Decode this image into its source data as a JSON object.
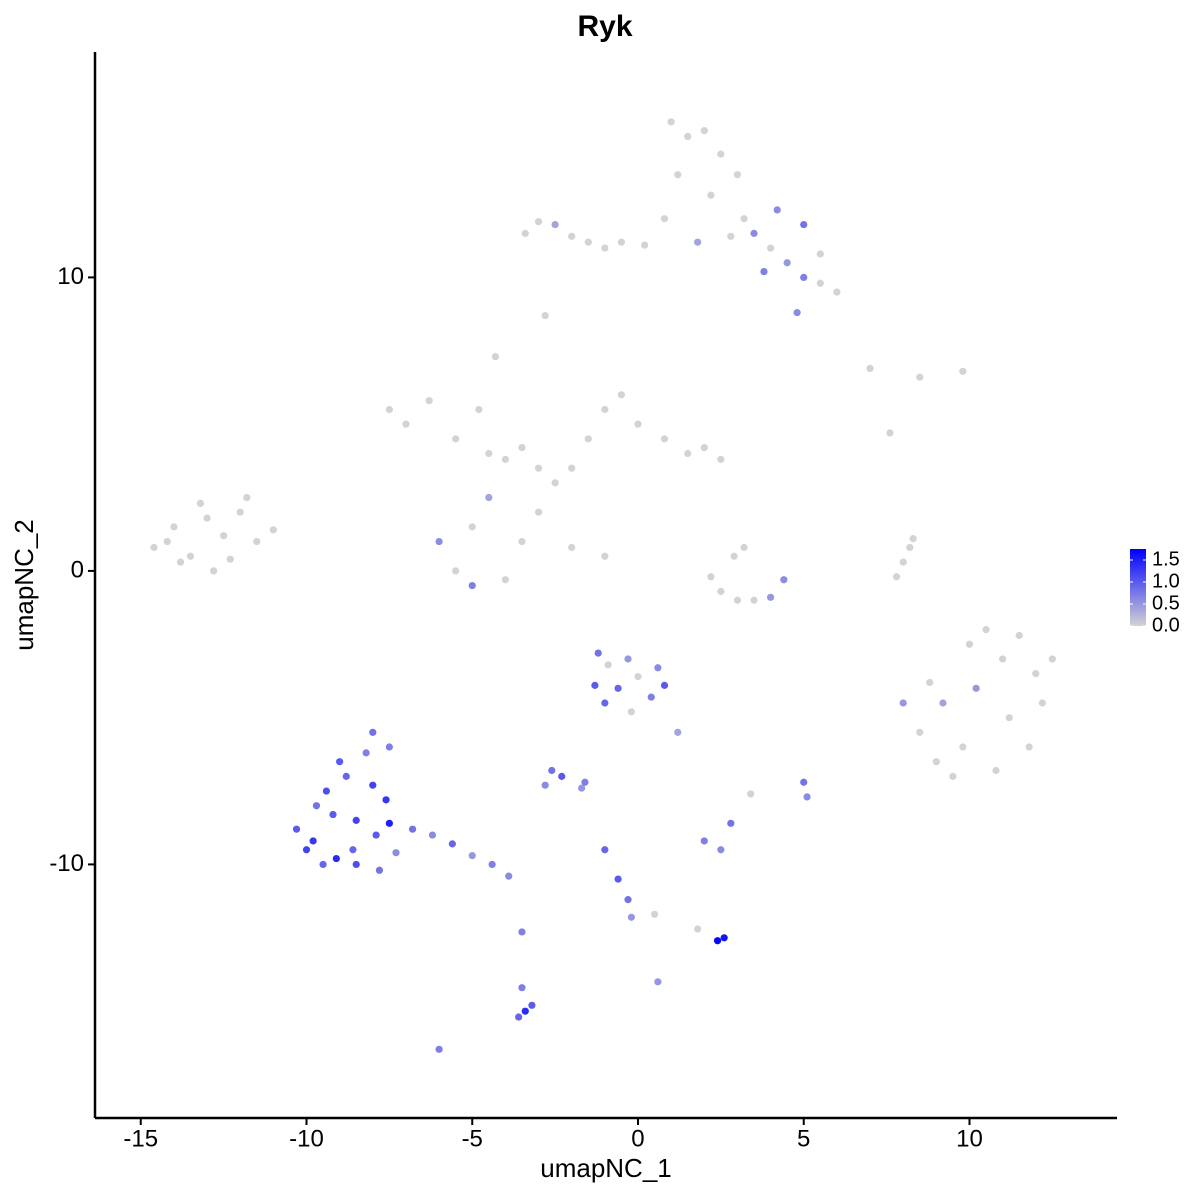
{
  "chart_data": {
    "type": "scatter",
    "title": "Ryk",
    "x_label": "umapNC_1",
    "y_label": "umapNC_2",
    "xlim": [
      -16.38,
      14.45
    ],
    "ylim": [
      -18.64,
      17.68
    ],
    "xticks": [
      -15,
      -10,
      -5,
      0,
      5,
      10
    ],
    "yticks": [
      -10,
      0,
      10
    ],
    "grid": false,
    "colors": {
      "low": "#d3d3d3",
      "high": "#0000ff"
    },
    "colorbar": {
      "lim": [
        0,
        1.75
      ],
      "ticks": [
        {
          "value": 0,
          "label": "0.0"
        },
        0.5,
        {
          "value": 1,
          "label": "1.0"
        },
        1.5
      ]
    },
    "x": [
      -14.6,
      -14.0,
      -13.5,
      -13.0,
      -12.5,
      -12.0,
      -11.5,
      -11.0,
      -13.8,
      -13.2,
      -12.3,
      -11.8,
      -12.8,
      -14.2,
      -7.5,
      -7.0,
      -6.3,
      -5.5,
      -4.5,
      -4.0,
      -3.5,
      -3.0,
      -2.5,
      -2.0,
      -1.5,
      -1.0,
      -0.5,
      0.0,
      0.8,
      1.5,
      2.0,
      2.5,
      -4.3,
      -4.8,
      -3.0,
      -2.0,
      -6.0,
      -5.5,
      -5.0,
      -4.0,
      -3.5,
      -1.0,
      -4.5,
      -5.0,
      1.0,
      1.5,
      2.0,
      2.5,
      3.0,
      1.2,
      2.2,
      3.2,
      3.5,
      4.0,
      4.5,
      5.0,
      5.5,
      6.0,
      4.2,
      5.0,
      5.5,
      3.8,
      0.8,
      1.8,
      2.8,
      4.8,
      -3.4,
      -3.0,
      -2.5,
      -2.0,
      -1.5,
      -1.0,
      -0.5,
      0.2,
      -2.8,
      7.0,
      8.5,
      9.8,
      7.6,
      2.2,
      2.5,
      3.0,
      3.5,
      4.0,
      4.4,
      3.2,
      2.9,
      7.8,
      8.0,
      8.2,
      8.3,
      8.0,
      8.5,
      9.0,
      9.5,
      10.0,
      10.5,
      11.0,
      11.5,
      12.0,
      12.5,
      9.2,
      10.2,
      11.2,
      12.2,
      9.8,
      10.8,
      11.8,
      8.8,
      -10.3,
      -10.0,
      -9.7,
      -9.4,
      -9.1,
      -8.8,
      -8.5,
      -8.2,
      -7.9,
      -7.6,
      -7.3,
      -9.5,
      -9.0,
      -8.5,
      -8.0,
      -7.5,
      -9.8,
      -9.2,
      -8.6,
      -8.0,
      -7.5,
      -6.8,
      -6.2,
      -5.6,
      -5.0,
      -4.4,
      -3.9,
      -7.8,
      -1.2,
      -0.9,
      -0.6,
      -0.3,
      0.0,
      0.4,
      0.8,
      1.2,
      -1.0,
      -0.2,
      0.6,
      -1.3,
      -2.6,
      -2.3,
      -2.8,
      -1.6,
      -1.0,
      -0.6,
      -0.3,
      -0.2,
      0.5,
      1.8,
      2.0,
      2.5,
      2.8,
      2.4,
      2.6,
      3.4,
      5.0,
      5.1,
      -3.5,
      -3.5,
      -3.4,
      -3.2,
      -3.6,
      -6.0,
      0.6,
      -1.7
    ],
    "y": [
      0.8,
      1.5,
      0.5,
      1.8,
      1.2,
      2.0,
      1.0,
      1.4,
      0.3,
      2.3,
      0.4,
      2.5,
      0.0,
      1.0,
      5.5,
      5.0,
      5.8,
      4.5,
      4.0,
      3.8,
      4.2,
      3.5,
      3.0,
      3.5,
      4.5,
      5.5,
      6.0,
      5.0,
      4.5,
      4.0,
      4.2,
      3.8,
      7.3,
      5.5,
      2.0,
      0.8,
      1.0,
      0.0,
      -0.5,
      -0.3,
      1.0,
      0.5,
      2.5,
      1.5,
      15.3,
      14.8,
      15.0,
      14.2,
      13.5,
      13.5,
      12.8,
      12.0,
      11.5,
      11.0,
      10.5,
      10.0,
      9.8,
      9.5,
      12.3,
      11.8,
      10.8,
      10.2,
      12.0,
      11.2,
      11.4,
      8.8,
      11.5,
      11.9,
      11.8,
      11.4,
      11.2,
      11.0,
      11.2,
      11.1,
      8.7,
      6.9,
      6.6,
      6.8,
      4.7,
      -0.2,
      -0.7,
      -1.0,
      -1.0,
      -0.9,
      -0.3,
      0.8,
      0.5,
      -0.2,
      0.3,
      0.8,
      1.1,
      -4.5,
      -5.5,
      -6.5,
      -7.0,
      -2.5,
      -2.0,
      -3.0,
      -2.2,
      -3.5,
      -3.0,
      -4.5,
      -4.0,
      -5.0,
      -4.5,
      -6.0,
      -6.8,
      -6.0,
      -3.8,
      -8.8,
      -9.5,
      -8.0,
      -7.5,
      -9.8,
      -7.0,
      -8.5,
      -6.2,
      -9.0,
      -7.8,
      -9.6,
      -10.0,
      -6.5,
      -10.0,
      -5.5,
      -8.6,
      -9.2,
      -8.3,
      -9.5,
      -7.3,
      -6.0,
      -8.8,
      -9.0,
      -9.3,
      -9.7,
      -10.0,
      -10.4,
      -10.2,
      -2.8,
      -3.2,
      -4.0,
      -3.0,
      -3.6,
      -4.3,
      -3.9,
      -5.5,
      -4.5,
      -4.8,
      -3.3,
      -3.9,
      -6.8,
      -7.0,
      -7.3,
      -7.2,
      -9.5,
      -10.5,
      -11.2,
      -11.8,
      -11.7,
      -12.2,
      -9.2,
      -9.5,
      -8.6,
      -12.6,
      -12.5,
      -7.6,
      -7.2,
      -7.7,
      -12.3,
      -14.2,
      -15.0,
      -14.8,
      -15.2,
      -16.3,
      -14.0,
      -7.4
    ],
    "values": [
      0,
      0,
      0,
      0,
      0,
      0,
      0,
      0,
      0,
      0,
      0,
      0,
      0,
      0,
      0,
      0,
      0,
      0,
      0,
      0,
      0,
      0,
      0,
      0,
      0,
      0,
      0,
      0,
      0,
      0,
      0,
      0,
      0,
      0,
      0,
      0,
      0.6,
      0,
      0.7,
      0,
      0,
      0,
      0.4,
      0,
      0,
      0,
      0,
      0,
      0,
      0,
      0,
      0,
      0.6,
      0,
      0.5,
      0.7,
      0,
      0,
      0.6,
      0.8,
      0,
      0.7,
      0,
      0.4,
      0,
      0.6,
      0,
      0,
      0.4,
      0,
      0,
      0,
      0,
      0,
      0,
      0,
      0,
      0,
      0,
      0,
      0,
      0,
      0,
      0.5,
      0.6,
      0,
      0,
      0,
      0,
      0,
      0,
      0.5,
      0,
      0,
      0,
      0,
      0,
      0,
      0,
      0,
      0,
      0.4,
      0.5,
      0,
      0,
      0,
      0,
      0,
      0,
      1.0,
      1.2,
      0.8,
      1.1,
      1.4,
      0.9,
      1.2,
      0.7,
      1.0,
      1.3,
      0.6,
      0.9,
      1.0,
      1.1,
      0.8,
      1.5,
      1.3,
      1.0,
      0.9,
      1.2,
      0.7,
      0.8,
      0.6,
      0.9,
      0.5,
      0.7,
      0.6,
      0.8,
      0.8,
      0,
      0.9,
      0.5,
      0,
      0.7,
      1.0,
      0.4,
      0.9,
      0,
      0.6,
      1.0,
      0.8,
      1.0,
      0.6,
      0.7,
      0.9,
      1.0,
      0.8,
      0.5,
      0,
      0,
      0.7,
      0.6,
      0.8,
      1.7,
      1.6,
      0,
      0.8,
      0.6,
      0.7,
      0.7,
      1.4,
      1.0,
      0.9,
      0.7,
      0.5,
      0.5
    ]
  }
}
